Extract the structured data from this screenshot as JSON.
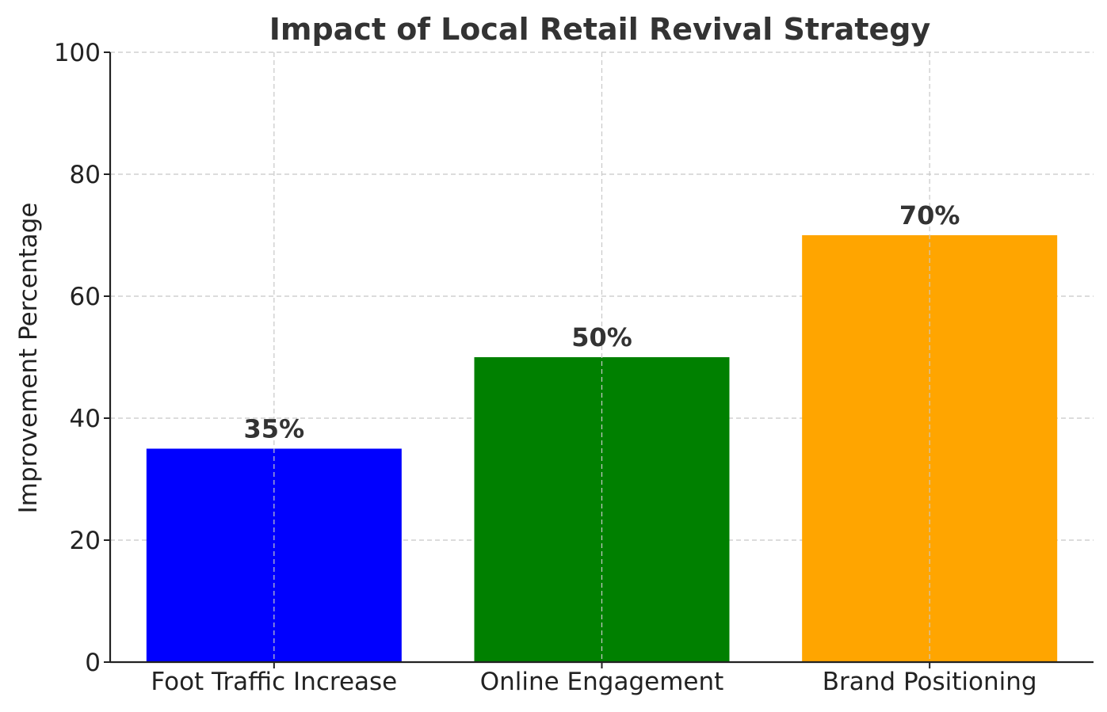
{
  "chart_data": {
    "type": "bar",
    "title": "Impact of Local Retail Revival Strategy",
    "xlabel": "",
    "ylabel": "Improvement Percentage",
    "categories": [
      "Foot Traffic Increase",
      "Online Engagement",
      "Brand Positioning"
    ],
    "values": [
      35,
      50,
      70
    ],
    "data_labels": [
      "35%",
      "50%",
      "70%"
    ],
    "colors": [
      "#0000ff",
      "#008000",
      "#ffa500"
    ],
    "ylim": [
      0,
      100
    ],
    "yticks": [
      0,
      20,
      40,
      60,
      80,
      100
    ],
    "ytick_labels": [
      "0",
      "20",
      "40",
      "60",
      "80",
      "100"
    ],
    "grid": true
  }
}
